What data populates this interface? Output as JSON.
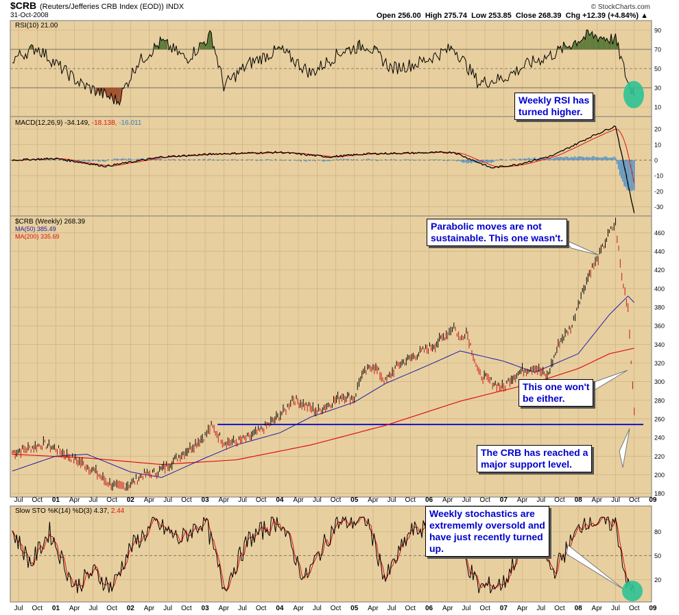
{
  "header": {
    "symbol": "$CRB",
    "description": "(Reuters/Jefferies CRB Index (EOD))",
    "exchange": "INDX",
    "date": "31-Oct-2008",
    "source": "© StockCharts.com",
    "ohlc": "Open 256.00  High 275.74  Low 253.85  Close 268.39  Chg +12.39 (+4.84%) ▲"
  },
  "colors": {
    "panel_bg": "#e8cf9f",
    "grid": "#c8ad7c",
    "price": "#000000",
    "ma50": "#1c1ca8",
    "ma200": "#dd1111",
    "support": "#1010c8",
    "rsi_fill_ob": "#5e7a3a",
    "rsi_fill_os": "#a0502e",
    "macd_hist": "#4d8fc8",
    "highlight": "#2ec294"
  },
  "x_labels": [
    "Jul",
    "Oct",
    "01",
    "Apr",
    "Jul",
    "Oct",
    "02",
    "Apr",
    "Jul",
    "Oct",
    "03",
    "Apr",
    "Jul",
    "Oct",
    "04",
    "Apr",
    "Jul",
    "Oct",
    "05",
    "Apr",
    "Jul",
    "Oct",
    "06",
    "Apr",
    "Jul",
    "Oct",
    "07",
    "Apr",
    "Jul",
    "Oct",
    "08",
    "Apr",
    "Jul",
    "Oct",
    "09"
  ],
  "bold_x_labels": [
    "01",
    "02",
    "03",
    "04",
    "05",
    "06",
    "07",
    "08",
    "09"
  ],
  "panels": {
    "rsi": {
      "legend": "RSI(10) 21.00",
      "ticks": [
        "90",
        "70",
        "50",
        "30",
        "10"
      ]
    },
    "macd": {
      "legend_prefix": "MACD(12,26,9) -34.149,",
      "legend_signal": "-18.138,",
      "legend_hist": "-16.011",
      "ticks": [
        "20",
        "10",
        "0",
        "-10",
        "-20",
        "-30"
      ]
    },
    "price": {
      "legend_main": "$CRB (Weekly) 268.39",
      "legend_ma50": "MA(50) 385.49",
      "legend_ma200": "MA(200) 335.69",
      "ticks": [
        "460",
        "440",
        "420",
        "400",
        "380",
        "360",
        "340",
        "320",
        "300",
        "280",
        "260",
        "240",
        "220",
        "200",
        "180"
      ]
    },
    "stoch": {
      "legend_prefix": "Slow STO %K(14) %D(3) 4.37,",
      "legend_d": "2.44",
      "ticks": [
        "80",
        "50",
        "20"
      ]
    }
  },
  "callouts": {
    "rsi": "Weekly RSI has\nturned higher.",
    "parabolic": "Parabolic moves are not\nsustainable. This one wasn't.",
    "wont": "This one won't\nbe either.",
    "support": "The CRB has reached a\nmajor support level.",
    "stoch": "Weekly stochastics are\nextrememly oversold and\nhave just recently turned\nup."
  },
  "chart_data": {
    "type": "line",
    "frequency": "weekly",
    "x_range": [
      "2000-06",
      "2008-10"
    ],
    "price": {
      "series_name": "$CRB (Weekly)",
      "ylim": [
        180,
        470
      ],
      "support_level": 254,
      "points": [
        [
          "2000-06",
          224
        ],
        [
          "2000-09",
          229
        ],
        [
          "2000-11",
          233
        ],
        [
          "2001-01",
          228
        ],
        [
          "2001-03",
          220
        ],
        [
          "2001-05",
          213
        ],
        [
          "2001-07",
          205
        ],
        [
          "2001-09",
          193
        ],
        [
          "2001-11",
          186
        ],
        [
          "2002-01",
          190
        ],
        [
          "2002-03",
          200
        ],
        [
          "2002-05",
          202
        ],
        [
          "2002-07",
          210
        ],
        [
          "2002-09",
          221
        ],
        [
          "2002-11",
          231
        ],
        [
          "2003-01",
          242
        ],
        [
          "2003-02",
          252
        ],
        [
          "2003-04",
          235
        ],
        [
          "2003-06",
          235
        ],
        [
          "2003-08",
          240
        ],
        [
          "2003-10",
          248
        ],
        [
          "2003-12",
          258
        ],
        [
          "2004-02",
          270
        ],
        [
          "2004-03",
          282
        ],
        [
          "2004-05",
          275
        ],
        [
          "2004-07",
          268
        ],
        [
          "2004-09",
          276
        ],
        [
          "2004-11",
          285
        ],
        [
          "2005-01",
          282
        ],
        [
          "2005-02",
          305
        ],
        [
          "2005-04",
          318
        ],
        [
          "2005-06",
          300
        ],
        [
          "2005-08",
          318
        ],
        [
          "2005-10",
          325
        ],
        [
          "2005-12",
          333
        ],
        [
          "2006-02",
          340
        ],
        [
          "2006-04",
          352
        ],
        [
          "2006-05",
          360
        ],
        [
          "2006-06",
          345
        ],
        [
          "2006-07",
          355
        ],
        [
          "2006-09",
          308
        ],
        [
          "2006-11",
          300
        ],
        [
          "2007-01",
          293
        ],
        [
          "2007-02",
          303
        ],
        [
          "2007-04",
          312
        ],
        [
          "2007-06",
          316
        ],
        [
          "2007-08",
          305
        ],
        [
          "2007-10",
          343
        ],
        [
          "2007-12",
          360
        ],
        [
          "2008-01",
          385
        ],
        [
          "2008-03",
          420
        ],
        [
          "2008-04",
          430
        ],
        [
          "2008-06",
          460
        ],
        [
          "2008-07",
          470
        ],
        [
          "2008-08",
          412
        ],
        [
          "2008-09",
          380
        ],
        [
          "2008-10",
          268
        ]
      ]
    },
    "ma50": [
      [
        "2000-06",
        204
      ],
      [
        "2001-01",
        220
      ],
      [
        "2001-06",
        222
      ],
      [
        "2002-01",
        203
      ],
      [
        "2002-06",
        197
      ],
      [
        "2003-01",
        218
      ],
      [
        "2003-06",
        232
      ],
      [
        "2004-01",
        245
      ],
      [
        "2004-06",
        262
      ],
      [
        "2005-01",
        278
      ],
      [
        "2005-06",
        298
      ],
      [
        "2006-01",
        318
      ],
      [
        "2006-06",
        333
      ],
      [
        "2007-01",
        322
      ],
      [
        "2007-06",
        310
      ],
      [
        "2008-01",
        330
      ],
      [
        "2008-06",
        372
      ],
      [
        "2008-09",
        392
      ],
      [
        "2008-10",
        385
      ]
    ],
    "ma200": [
      [
        "2000-06",
        222
      ],
      [
        "2001-06",
        218
      ],
      [
        "2002-06",
        211
      ],
      [
        "2003-06",
        216
      ],
      [
        "2004-06",
        232
      ],
      [
        "2005-06",
        253
      ],
      [
        "2006-06",
        279
      ],
      [
        "2007-06",
        299
      ],
      [
        "2008-01",
        314
      ],
      [
        "2008-06",
        330
      ],
      [
        "2008-10",
        336
      ]
    ],
    "rsi": {
      "ylim": [
        0,
        100
      ],
      "overbought": 70,
      "oversold": 30,
      "points": [
        [
          "2000-06",
          60
        ],
        [
          "2000-10",
          72
        ],
        [
          "2001-01",
          55
        ],
        [
          "2001-05",
          34
        ],
        [
          "2001-09",
          22
        ],
        [
          "2001-11",
          16
        ],
        [
          "2002-02",
          55
        ],
        [
          "2002-06",
          78
        ],
        [
          "2002-10",
          60
        ],
        [
          "2003-02",
          85
        ],
        [
          "2003-04",
          32
        ],
        [
          "2003-08",
          55
        ],
        [
          "2004-01",
          70
        ],
        [
          "2004-06",
          45
        ],
        [
          "2004-11",
          68
        ],
        [
          "2005-03",
          75
        ],
        [
          "2005-07",
          50
        ],
        [
          "2005-11",
          55
        ],
        [
          "2006-05",
          72
        ],
        [
          "2006-09",
          35
        ],
        [
          "2007-01",
          40
        ],
        [
          "2007-05",
          55
        ],
        [
          "2007-09",
          65
        ],
        [
          "2008-01",
          80
        ],
        [
          "2008-03",
          85
        ],
        [
          "2008-07",
          80
        ],
        [
          "2008-09",
          35
        ],
        [
          "2008-10",
          21
        ]
      ]
    },
    "macd": {
      "ylim": [
        -35,
        25
      ],
      "points": [
        [
          "2000-06",
          0
        ],
        [
          "2001-01",
          1
        ],
        [
          "2001-09",
          -4
        ],
        [
          "2002-06",
          2
        ],
        [
          "2003-03",
          4
        ],
        [
          "2004-01",
          5
        ],
        [
          "2004-09",
          2
        ],
        [
          "2005-03",
          4
        ],
        [
          "2006-05",
          5
        ],
        [
          "2006-11",
          -5
        ],
        [
          "2007-03",
          -3
        ],
        [
          "2007-09",
          3
        ],
        [
          "2008-03",
          15
        ],
        [
          "2008-07",
          22
        ],
        [
          "2008-10",
          -34.149
        ]
      ],
      "signal_last": -18.138,
      "hist_last": -16.011
    },
    "stoch": {
      "ylim": [
        0,
        100
      ],
      "k_last": 4.37,
      "d_last": 2.44,
      "points": [
        [
          "2000-06",
          80
        ],
        [
          "2000-09",
          40
        ],
        [
          "2000-12",
          80
        ],
        [
          "2001-04",
          10
        ],
        [
          "2001-07",
          30
        ],
        [
          "2001-10",
          10
        ],
        [
          "2002-01",
          60
        ],
        [
          "2002-05",
          90
        ],
        [
          "2002-09",
          70
        ],
        [
          "2003-01",
          95
        ],
        [
          "2003-04",
          10
        ],
        [
          "2003-08",
          70
        ],
        [
          "2004-01",
          95
        ],
        [
          "2004-05",
          20
        ],
        [
          "2004-10",
          90
        ],
        [
          "2005-03",
          95
        ],
        [
          "2005-06",
          20
        ],
        [
          "2005-10",
          80
        ],
        [
          "2006-04",
          90
        ],
        [
          "2006-09",
          10
        ],
        [
          "2007-01",
          15
        ],
        [
          "2007-05",
          80
        ],
        [
          "2007-09",
          30
        ],
        [
          "2008-02",
          95
        ],
        [
          "2008-07",
          90
        ],
        [
          "2008-09",
          10
        ],
        [
          "2008-10",
          4.37
        ]
      ]
    }
  }
}
